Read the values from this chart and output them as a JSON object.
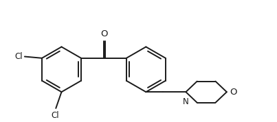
{
  "background_color": "#ffffff",
  "line_color": "#1a1a1a",
  "line_width": 1.4,
  "font_size": 8.5,
  "fig_width": 4.03,
  "fig_height": 1.78,
  "dpi": 100,
  "xlim": [
    0.0,
    8.5
  ],
  "ylim": [
    -1.6,
    2.2
  ]
}
